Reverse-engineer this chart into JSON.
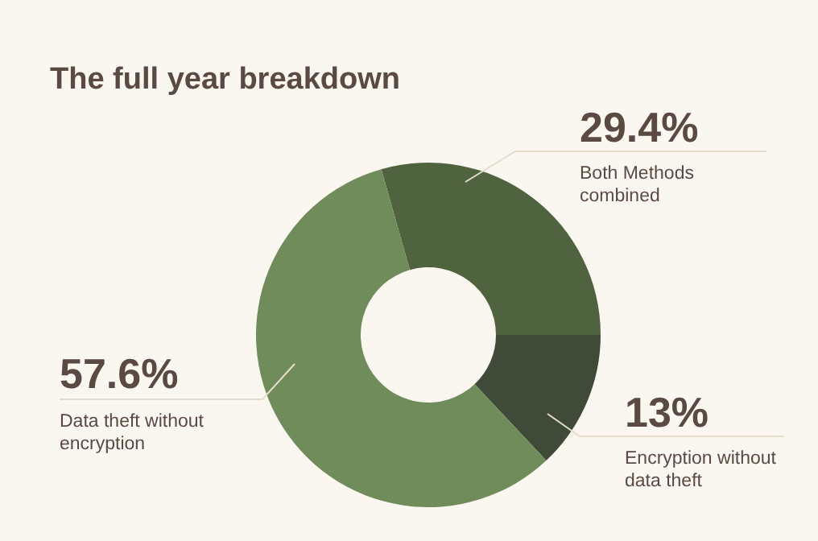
{
  "chart_data": {
    "type": "donut",
    "title": "The full year breakdown",
    "categories": [
      "Both Methods combined",
      "Encryption without data theft",
      "Data theft without encryption"
    ],
    "values": [
      29.4,
      13,
      57.6
    ],
    "value_labels": [
      "29.4%",
      "13%",
      "57.6%"
    ],
    "colors": [
      "#50633f",
      "#3f4b38",
      "#6f8c5a"
    ]
  }
}
